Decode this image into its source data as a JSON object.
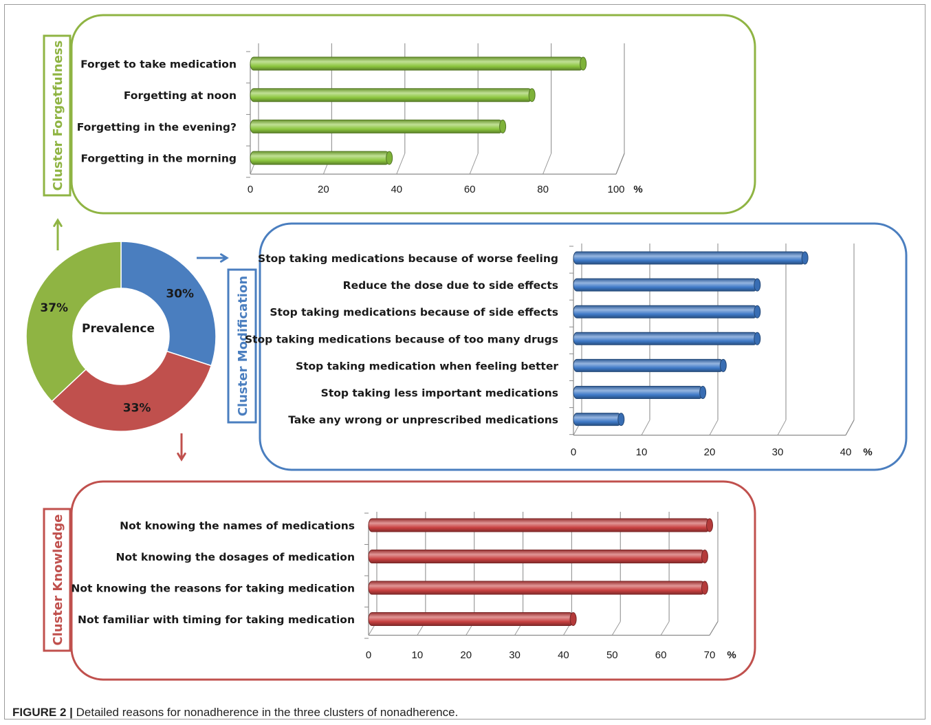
{
  "caption": {
    "label": "FIGURE 2 |",
    "text": " Detailed reasons for nonadherence in the three clusters of nonadherence."
  },
  "chart_data": [
    {
      "type": "pie",
      "center_label": "Prevalence",
      "categories": [
        "Cluster Modification",
        "Cluster Knowledge",
        "Cluster Forgetfulness"
      ],
      "values": [
        30,
        33,
        37
      ],
      "value_labels": [
        "30%",
        "33%",
        "37%"
      ],
      "colors": [
        "#4a7ebf",
        "#c0504d",
        "#8fb443"
      ]
    },
    {
      "type": "bar",
      "title": "Cluster Forgetfulness",
      "color": "#8cc63f",
      "categories": [
        "Forget to take medication",
        "Forgetting at noon",
        "Forgetting in the evening?",
        "Forgetting in the morning"
      ],
      "values": [
        91,
        77,
        69,
        38
      ],
      "xticks": [
        "0",
        "20",
        "40",
        "60",
        "80",
        "100"
      ],
      "xunit": "%",
      "xlim": [
        0,
        100
      ],
      "grid": true
    },
    {
      "type": "bar",
      "title": "Cluster Modification",
      "color": "#3e79c7",
      "categories": [
        "Stop taking medications because of  worse feeling",
        "Reduce the dose due to side effects",
        "Stop taking medications because of side effects",
        "Stop taking medications because of too many drugs",
        "Stop taking medication when feeling better",
        "Stop taking less important medications",
        "Take any wrong or unprescribed medications"
      ],
      "values": [
        34,
        27,
        27,
        27,
        22,
        19,
        7
      ],
      "xticks": [
        "0",
        "10",
        "20",
        "30",
        "40"
      ],
      "xunit": "%",
      "xlim": [
        0,
        40
      ],
      "grid": true
    },
    {
      "type": "bar",
      "title": "Cluster Knowledge",
      "color": "#c84040",
      "categories": [
        "Not knowing the names of medications",
        "Not knowing the dosages of medication",
        "Not knowing the reasons for taking medication",
        "Not familiar with timing for taking medication"
      ],
      "values": [
        70,
        69,
        69,
        42
      ],
      "xticks": [
        "0",
        "10",
        "20",
        "30",
        "40",
        "50",
        "60",
        "70"
      ],
      "xunit": "%",
      "xlim": [
        0,
        70
      ],
      "grid": true
    }
  ]
}
